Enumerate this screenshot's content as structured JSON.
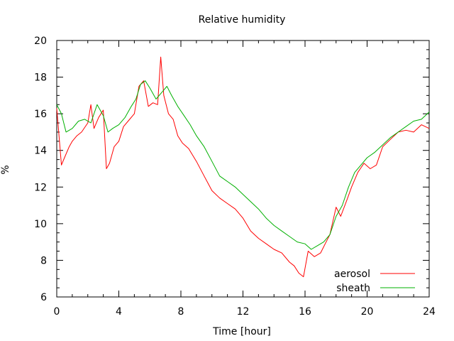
{
  "chart_data": {
    "type": "line",
    "title": "Relative humidity",
    "xlabel": "Time [hour]",
    "ylabel": "%",
    "xlim": [
      0,
      24
    ],
    "ylim": [
      6,
      20
    ],
    "xticks": [
      0,
      4,
      8,
      12,
      16,
      20,
      24
    ],
    "yticks": [
      6,
      8,
      10,
      12,
      14,
      16,
      18,
      20
    ],
    "grid": false,
    "legend_position": "bottom-right",
    "series": [
      {
        "name": "aerosol",
        "color": "#ff0000",
        "x": [
          0,
          0.3,
          0.5,
          0.8,
          1.0,
          1.3,
          1.6,
          2.0,
          2.2,
          2.4,
          2.7,
          3.0,
          3.2,
          3.4,
          3.7,
          4.0,
          4.3,
          4.6,
          5.0,
          5.3,
          5.6,
          5.9,
          6.2,
          6.5,
          6.7,
          6.9,
          7.2,
          7.5,
          7.8,
          8.1,
          8.5,
          9.0,
          9.5,
          10.0,
          10.5,
          11.0,
          11.5,
          12.0,
          12.5,
          13.0,
          13.5,
          14.0,
          14.5,
          15.0,
          15.3,
          15.6,
          15.9,
          16.2,
          16.6,
          17.0,
          17.3,
          17.6,
          18.0,
          18.3,
          18.7,
          19.0,
          19.4,
          19.8,
          20.2,
          20.6,
          21.0,
          21.5,
          22.0,
          22.5,
          23.0,
          23.5,
          24.0
        ],
        "y": [
          16.3,
          13.2,
          13.6,
          14.2,
          14.5,
          14.8,
          15.0,
          15.5,
          16.5,
          15.2,
          15.8,
          16.2,
          13.0,
          13.3,
          14.2,
          14.5,
          15.3,
          15.6,
          16.0,
          17.5,
          17.8,
          16.4,
          16.6,
          16.5,
          19.1,
          17.0,
          16.0,
          15.7,
          14.8,
          14.4,
          14.1,
          13.4,
          12.6,
          11.8,
          11.4,
          11.1,
          10.8,
          10.3,
          9.6,
          9.2,
          8.9,
          8.6,
          8.4,
          7.9,
          7.7,
          7.3,
          7.1,
          8.5,
          8.2,
          8.4,
          8.9,
          9.4,
          10.9,
          10.4,
          11.3,
          12.0,
          12.8,
          13.3,
          13.0,
          13.2,
          14.2,
          14.6,
          15.0,
          15.1,
          15.0,
          15.4,
          15.2
        ]
      },
      {
        "name": "sheath",
        "color": "#00b000",
        "x": [
          0,
          0.3,
          0.6,
          1.0,
          1.4,
          1.8,
          2.2,
          2.6,
          3.0,
          3.3,
          3.6,
          4.0,
          4.4,
          4.8,
          5.1,
          5.4,
          5.7,
          6.0,
          6.4,
          6.8,
          7.1,
          7.4,
          7.8,
          8.2,
          8.6,
          9.0,
          9.5,
          10.0,
          10.5,
          11.0,
          11.5,
          12.0,
          12.5,
          13.0,
          13.5,
          14.0,
          14.5,
          15.0,
          15.5,
          16.0,
          16.4,
          16.8,
          17.2,
          17.6,
          18.0,
          18.4,
          18.8,
          19.2,
          19.6,
          20.0,
          20.5,
          21.0,
          21.5,
          22.0,
          22.5,
          23.0,
          23.5,
          24.0
        ],
        "y": [
          16.5,
          16.0,
          15.0,
          15.2,
          15.6,
          15.7,
          15.5,
          16.5,
          15.9,
          15.0,
          15.2,
          15.4,
          15.8,
          16.4,
          16.8,
          17.6,
          17.8,
          17.4,
          16.8,
          17.2,
          17.5,
          17.0,
          16.4,
          15.9,
          15.4,
          14.8,
          14.2,
          13.4,
          12.6,
          12.3,
          12.0,
          11.6,
          11.2,
          10.8,
          10.3,
          9.9,
          9.6,
          9.3,
          9.0,
          8.9,
          8.6,
          8.8,
          9.0,
          9.4,
          10.4,
          11.0,
          12.0,
          12.8,
          13.2,
          13.6,
          13.9,
          14.3,
          14.7,
          15.0,
          15.3,
          15.6,
          15.7,
          16.1
        ]
      }
    ]
  }
}
